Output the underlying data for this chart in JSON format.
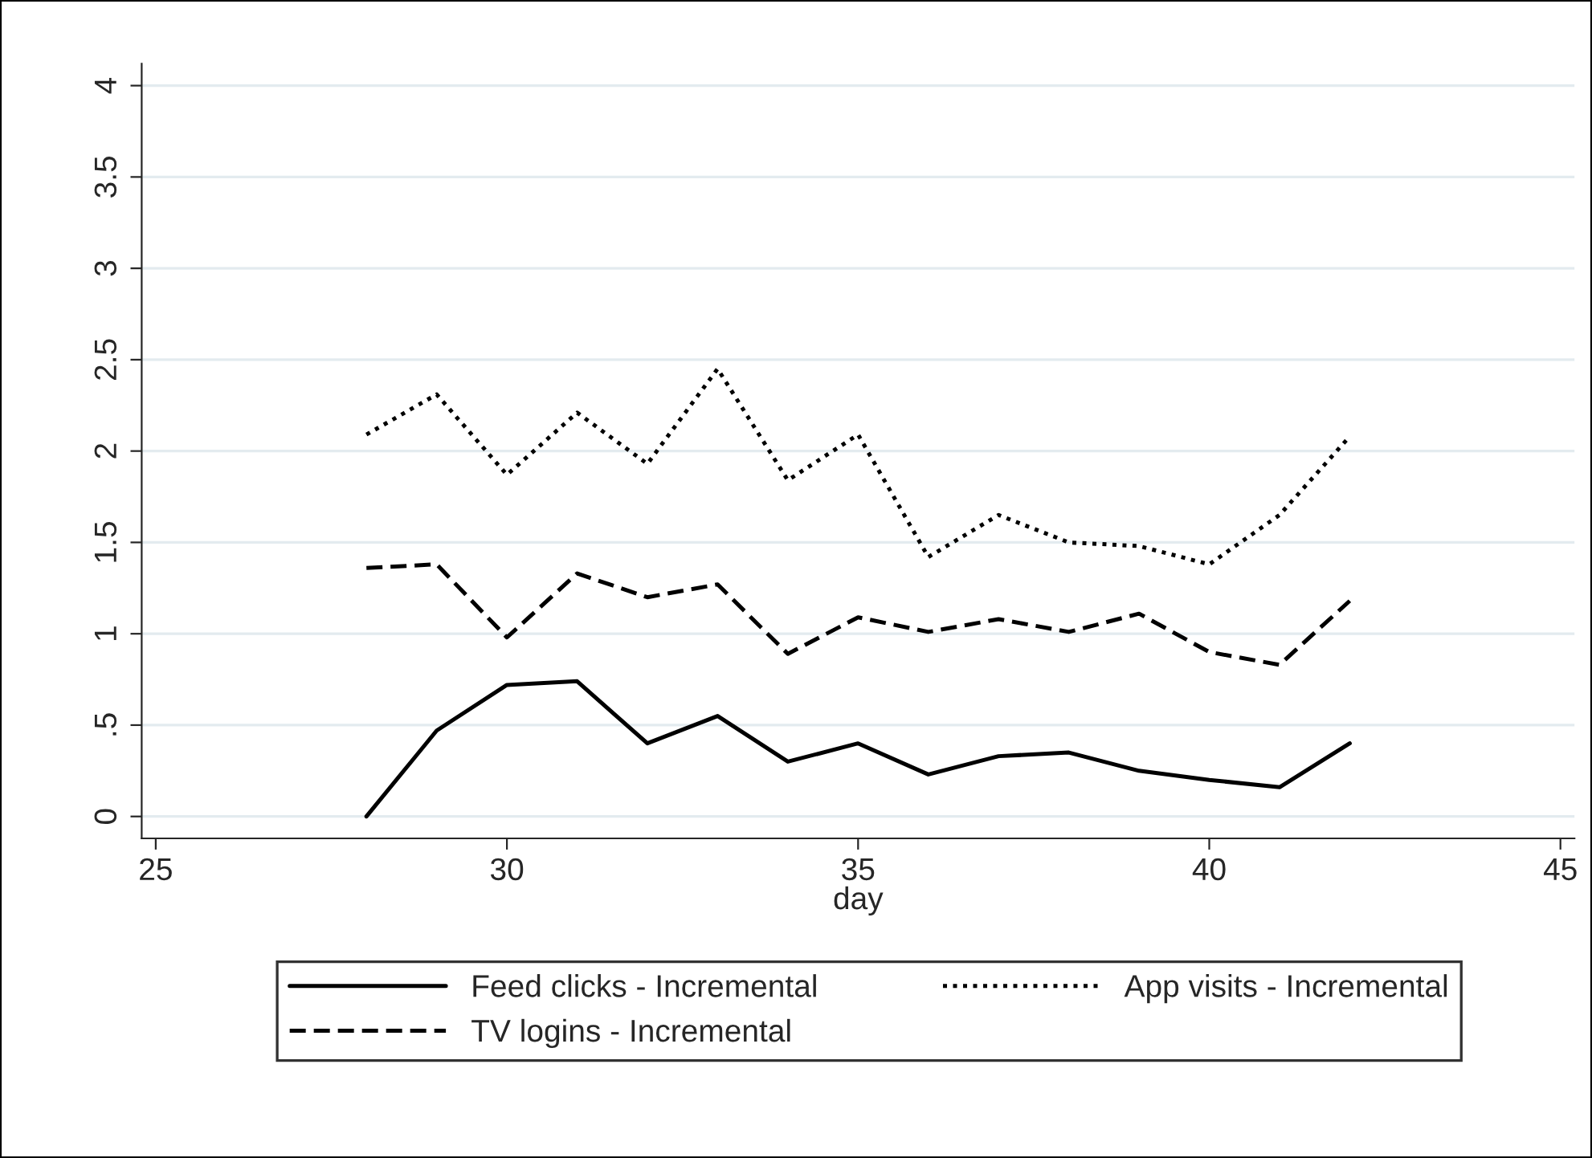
{
  "chart_data": {
    "type": "line",
    "xlabel": "day",
    "x": [
      28,
      29,
      30,
      31,
      32,
      33,
      34,
      35,
      36,
      37,
      38,
      39,
      40,
      41,
      42
    ],
    "series": [
      {
        "name": "Feed clicks - Incremental",
        "color": "#000000",
        "line_style": "solid",
        "values": [
          0,
          0.47,
          0.72,
          0.74,
          0.4,
          0.55,
          0.3,
          0.4,
          0.23,
          0.33,
          0.35,
          0.25,
          0.2,
          0.16,
          0.4
        ]
      },
      {
        "name": "App visits - Incremental",
        "color": "#000000",
        "line_style": "dotted",
        "values": [
          2.09,
          2.31,
          1.87,
          2.21,
          1.93,
          2.45,
          1.84,
          2.09,
          1.42,
          1.65,
          1.5,
          1.48,
          1.38,
          1.65,
          2.08
        ]
      },
      {
        "name": "TV logins - Incremental",
        "color": "#000000",
        "line_style": "dashed",
        "values": [
          1.36,
          1.38,
          0.98,
          1.33,
          1.2,
          1.27,
          0.89,
          1.09,
          1.01,
          1.08,
          1.01,
          1.11,
          0.9,
          0.83,
          1.18
        ]
      }
    ],
    "xlim": [
      24.8,
      45.2
    ],
    "xticks": [
      25,
      30,
      35,
      40,
      45
    ],
    "ylim": [
      -0.12,
      4.12
    ],
    "yticks": [
      0,
      {
        "value": 0.5,
        "label": ".5"
      },
      1,
      1.5,
      2,
      2.5,
      3,
      3.5,
      4
    ],
    "grid": "y",
    "legend": "bottom",
    "marker": "none"
  }
}
